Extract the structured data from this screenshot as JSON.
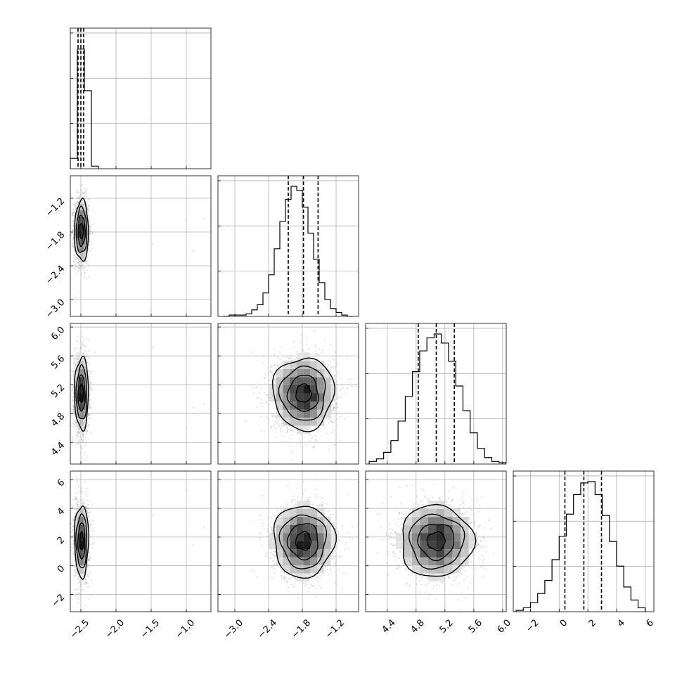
{
  "chart_data": {
    "type": "corner",
    "title": "",
    "grid": true,
    "parameters": [
      {
        "index": 0,
        "label": "",
        "range": [
          -2.65,
          -0.65
        ],
        "ticks": [
          -2.5,
          -2.0,
          -1.5,
          -1.0
        ],
        "tick_labels": [
          "−2.5",
          "−2.0",
          "−1.5",
          "−1.0"
        ],
        "quantiles": [
          -2.54,
          -2.5,
          -2.46
        ],
        "hist_bins": [
          -2.65,
          -2.55,
          -2.45,
          -2.35,
          -2.25
        ],
        "hist_counts": [
          0.08,
          0.92,
          0.6,
          0.02
        ],
        "mean": -2.49,
        "sd": 0.05
      },
      {
        "index": 1,
        "label": "",
        "range": [
          -3.3,
          -0.8
        ],
        "ticks": [
          -3.0,
          -2.4,
          -1.8,
          -1.2
        ],
        "tick_labels": [
          "−3.0",
          "−2.4",
          "−1.8",
          "−1.2"
        ],
        "quantiles": [
          -2.05,
          -1.78,
          -1.52
        ],
        "hist_bins": [
          -3.2,
          -3.1,
          -3.0,
          -2.9,
          -2.8,
          -2.7,
          -2.6,
          -2.5,
          -2.4,
          -2.3,
          -2.2,
          -2.1,
          -2.0,
          -1.9,
          -1.8,
          -1.7,
          -1.6,
          -1.5,
          -1.4,
          -1.3,
          -1.2,
          -1.1,
          -1.0,
          -0.9
        ],
        "hist_counts": [
          0.0,
          0.01,
          0.01,
          0.01,
          0.02,
          0.05,
          0.09,
          0.18,
          0.32,
          0.52,
          0.73,
          0.9,
          1.0,
          0.97,
          0.84,
          0.64,
          0.44,
          0.26,
          0.13,
          0.06,
          0.03,
          0.01,
          0.0
        ],
        "mean": -1.78,
        "sd": 0.27
      },
      {
        "index": 2,
        "label": "",
        "range": [
          4.1,
          6.05
        ],
        "ticks": [
          4.4,
          4.8,
          5.2,
          5.6,
          6.0
        ],
        "tick_labels": [
          "4.4",
          "4.8",
          "5.2",
          "5.6",
          "6.0"
        ],
        "quantiles": [
          4.83,
          5.08,
          5.33
        ],
        "hist_bins": [
          4.15,
          4.25,
          4.35,
          4.45,
          4.55,
          4.65,
          4.75,
          4.85,
          4.95,
          5.05,
          5.15,
          5.25,
          5.35,
          5.45,
          5.55,
          5.65,
          5.75,
          5.85,
          5.95,
          6.05
        ],
        "hist_counts": [
          0.02,
          0.04,
          0.09,
          0.18,
          0.33,
          0.52,
          0.71,
          0.87,
          0.97,
          1.0,
          0.93,
          0.79,
          0.6,
          0.41,
          0.24,
          0.12,
          0.05,
          0.02,
          0.01
        ],
        "mean": 5.08,
        "sd": 0.25
      },
      {
        "index": 3,
        "label": "",
        "range": [
          -3.2,
          6.6
        ],
        "ticks": [
          -2,
          0,
          2,
          4,
          6
        ],
        "tick_labels": [
          "−2",
          "0",
          "2",
          "4",
          "6"
        ],
        "quantiles": [
          0.4,
          1.72,
          2.95
        ],
        "hist_bins": [
          -3.0,
          -2.5,
          -2.0,
          -1.5,
          -1.0,
          -0.5,
          0.0,
          0.5,
          1.0,
          1.5,
          2.0,
          2.5,
          3.0,
          3.5,
          4.0,
          4.5,
          5.0,
          5.5,
          6.0
        ],
        "hist_counts": [
          0.01,
          0.03,
          0.07,
          0.14,
          0.24,
          0.4,
          0.58,
          0.75,
          0.9,
          0.99,
          1.0,
          0.9,
          0.74,
          0.54,
          0.35,
          0.19,
          0.09,
          0.03
        ],
        "mean": 1.72,
        "sd": 1.25
      }
    ],
    "correlations": [
      [
        1,
        0,
        0,
        0
      ],
      [
        0,
        1,
        0,
        0
      ],
      [
        0,
        0,
        1,
        0
      ],
      [
        0,
        0,
        0,
        1
      ]
    ],
    "outliers_param0": [
      -1.48,
      -1.0,
      -0.9,
      -0.75
    ],
    "contour_levels": [
      0.118,
      0.393,
      0.675,
      0.865
    ],
    "colors": {
      "line": "#000000",
      "grid": "#b0b0b0",
      "points": "#9a9a9a"
    }
  }
}
